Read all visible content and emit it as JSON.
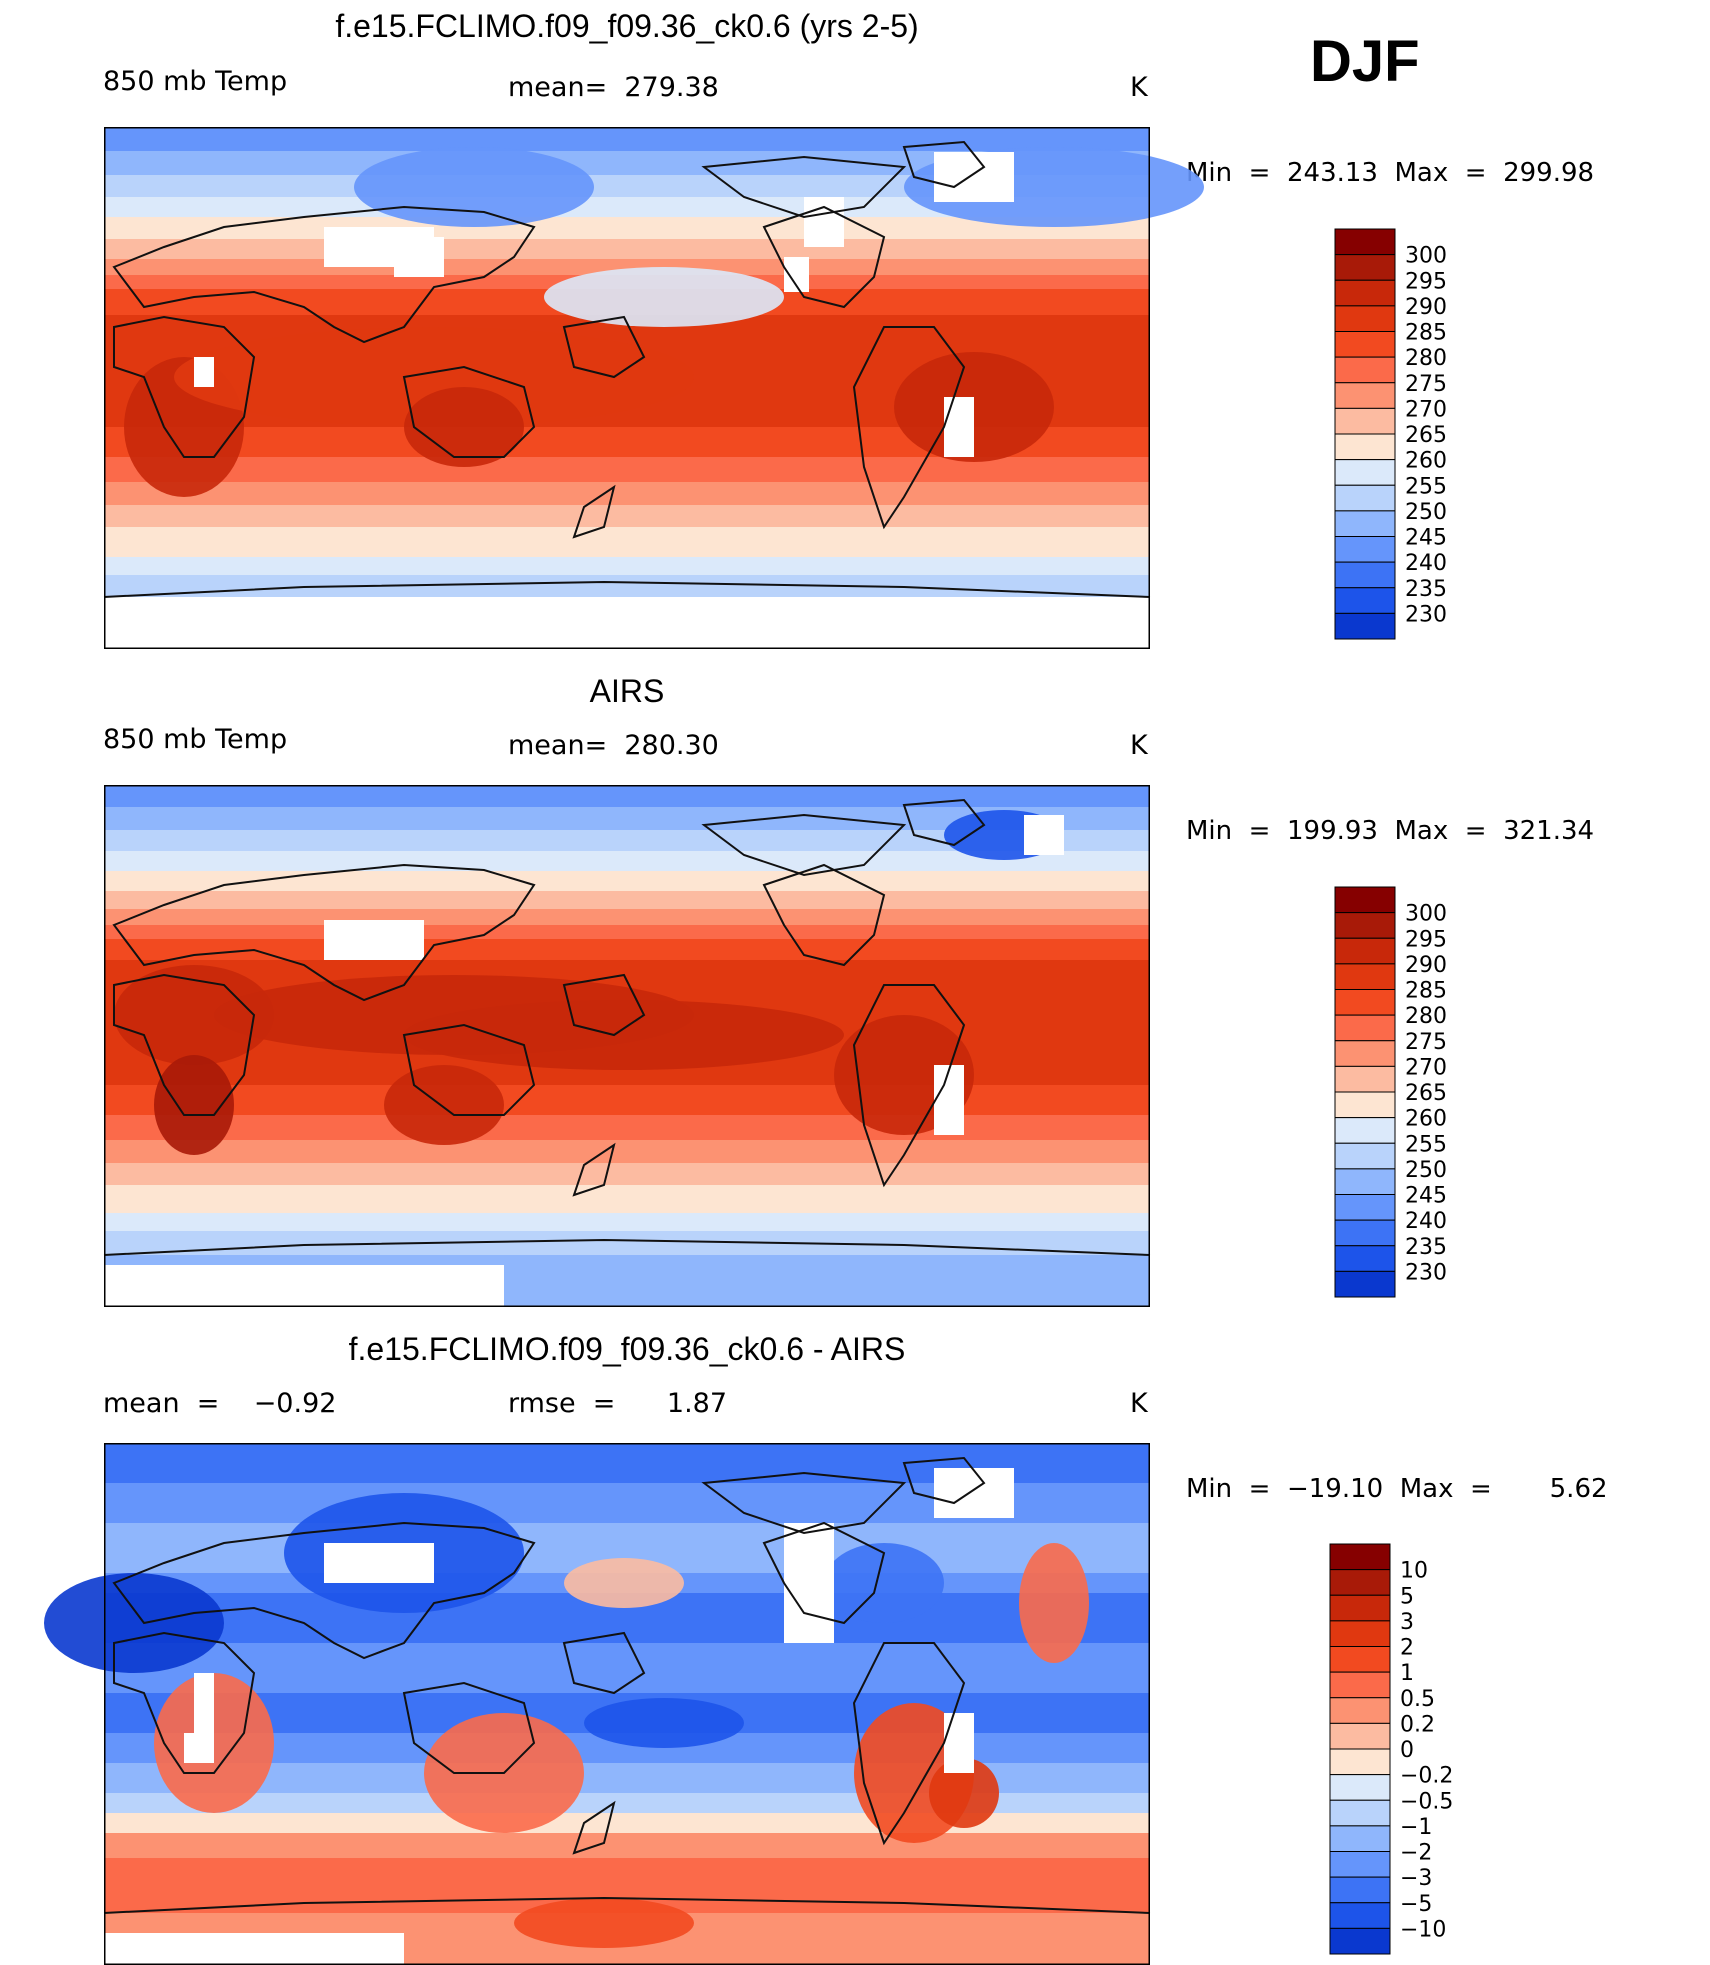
{
  "season": "DJF",
  "colors": {
    "warm": [
      "#fde5d2",
      "#fcbba1",
      "#fc9272",
      "#fb6a4a",
      "#f24a20",
      "#e03810",
      "#c8280a",
      "#a81a08",
      "#860000"
    ],
    "cool": [
      "#dbe9fa",
      "#b9d3fb",
      "#8fb6fc",
      "#6595fb",
      "#3d73f5",
      "#1d54ea",
      "#0a38cf",
      "#0022a5",
      "#000a80"
    ],
    "land": "#111111",
    "missing": "#ffffff"
  },
  "panels": [
    {
      "id": "model",
      "title": "f.e15.FCLIMO.f09_f09.36_ck0.6 (yrs 2-5)",
      "left_label": "850 mb Temp",
      "mid_label": "mean=  279.38",
      "units": "K",
      "minmax": "Min  =  243.13  Max  =  299.98",
      "legend_labels": [
        "300",
        "295",
        "290",
        "285",
        "280",
        "275",
        "270",
        "265",
        "260",
        "255",
        "250",
        "245",
        "240",
        "235",
        "230"
      ],
      "legend_colors": [
        "#860000",
        "#a81a08",
        "#c8280a",
        "#e03810",
        "#f24a20",
        "#fb6a4a",
        "#fc9272",
        "#fcbba1",
        "#fde5d2",
        "#dbe9fa",
        "#b9d3fb",
        "#8fb6fc",
        "#6595fb",
        "#3d73f5",
        "#1d54ea",
        "#0a38cf"
      ]
    },
    {
      "id": "obs",
      "title": "AIRS",
      "left_label": "850 mb Temp",
      "mid_label": "mean=  280.30",
      "units": "K",
      "minmax": "Min  =  199.93  Max  =  321.34",
      "legend_labels": [
        "300",
        "295",
        "290",
        "285",
        "280",
        "275",
        "270",
        "265",
        "260",
        "255",
        "250",
        "245",
        "240",
        "235",
        "230"
      ],
      "legend_colors": [
        "#860000",
        "#a81a08",
        "#c8280a",
        "#e03810",
        "#f24a20",
        "#fb6a4a",
        "#fc9272",
        "#fcbba1",
        "#fde5d2",
        "#dbe9fa",
        "#b9d3fb",
        "#8fb6fc",
        "#6595fb",
        "#3d73f5",
        "#1d54ea",
        "#0a38cf"
      ]
    },
    {
      "id": "diff",
      "title": "f.e15.FCLIMO.f09_f09.36_ck0.6 - AIRS",
      "left_label": "mean  =    −0.92",
      "mid_label": "rmse  =      1.87",
      "units": "K",
      "minmax": "Min  =  −19.10  Max  =       5.62",
      "legend_labels": [
        "10",
        "5",
        "3",
        "2",
        "1",
        "0.5",
        "0.2",
        "0",
        "−0.2",
        "−0.5",
        "−1",
        "−2",
        "−3",
        "−5",
        "−10"
      ],
      "legend_colors": [
        "#860000",
        "#a81a08",
        "#c8280a",
        "#e03810",
        "#f24a20",
        "#fb6a4a",
        "#fc9272",
        "#fcbba1",
        "#fde5d2",
        "#dbe9fa",
        "#b9d3fb",
        "#8fb6fc",
        "#6595fb",
        "#3d73f5",
        "#1d54ea",
        "#0a38cf"
      ]
    }
  ]
}
